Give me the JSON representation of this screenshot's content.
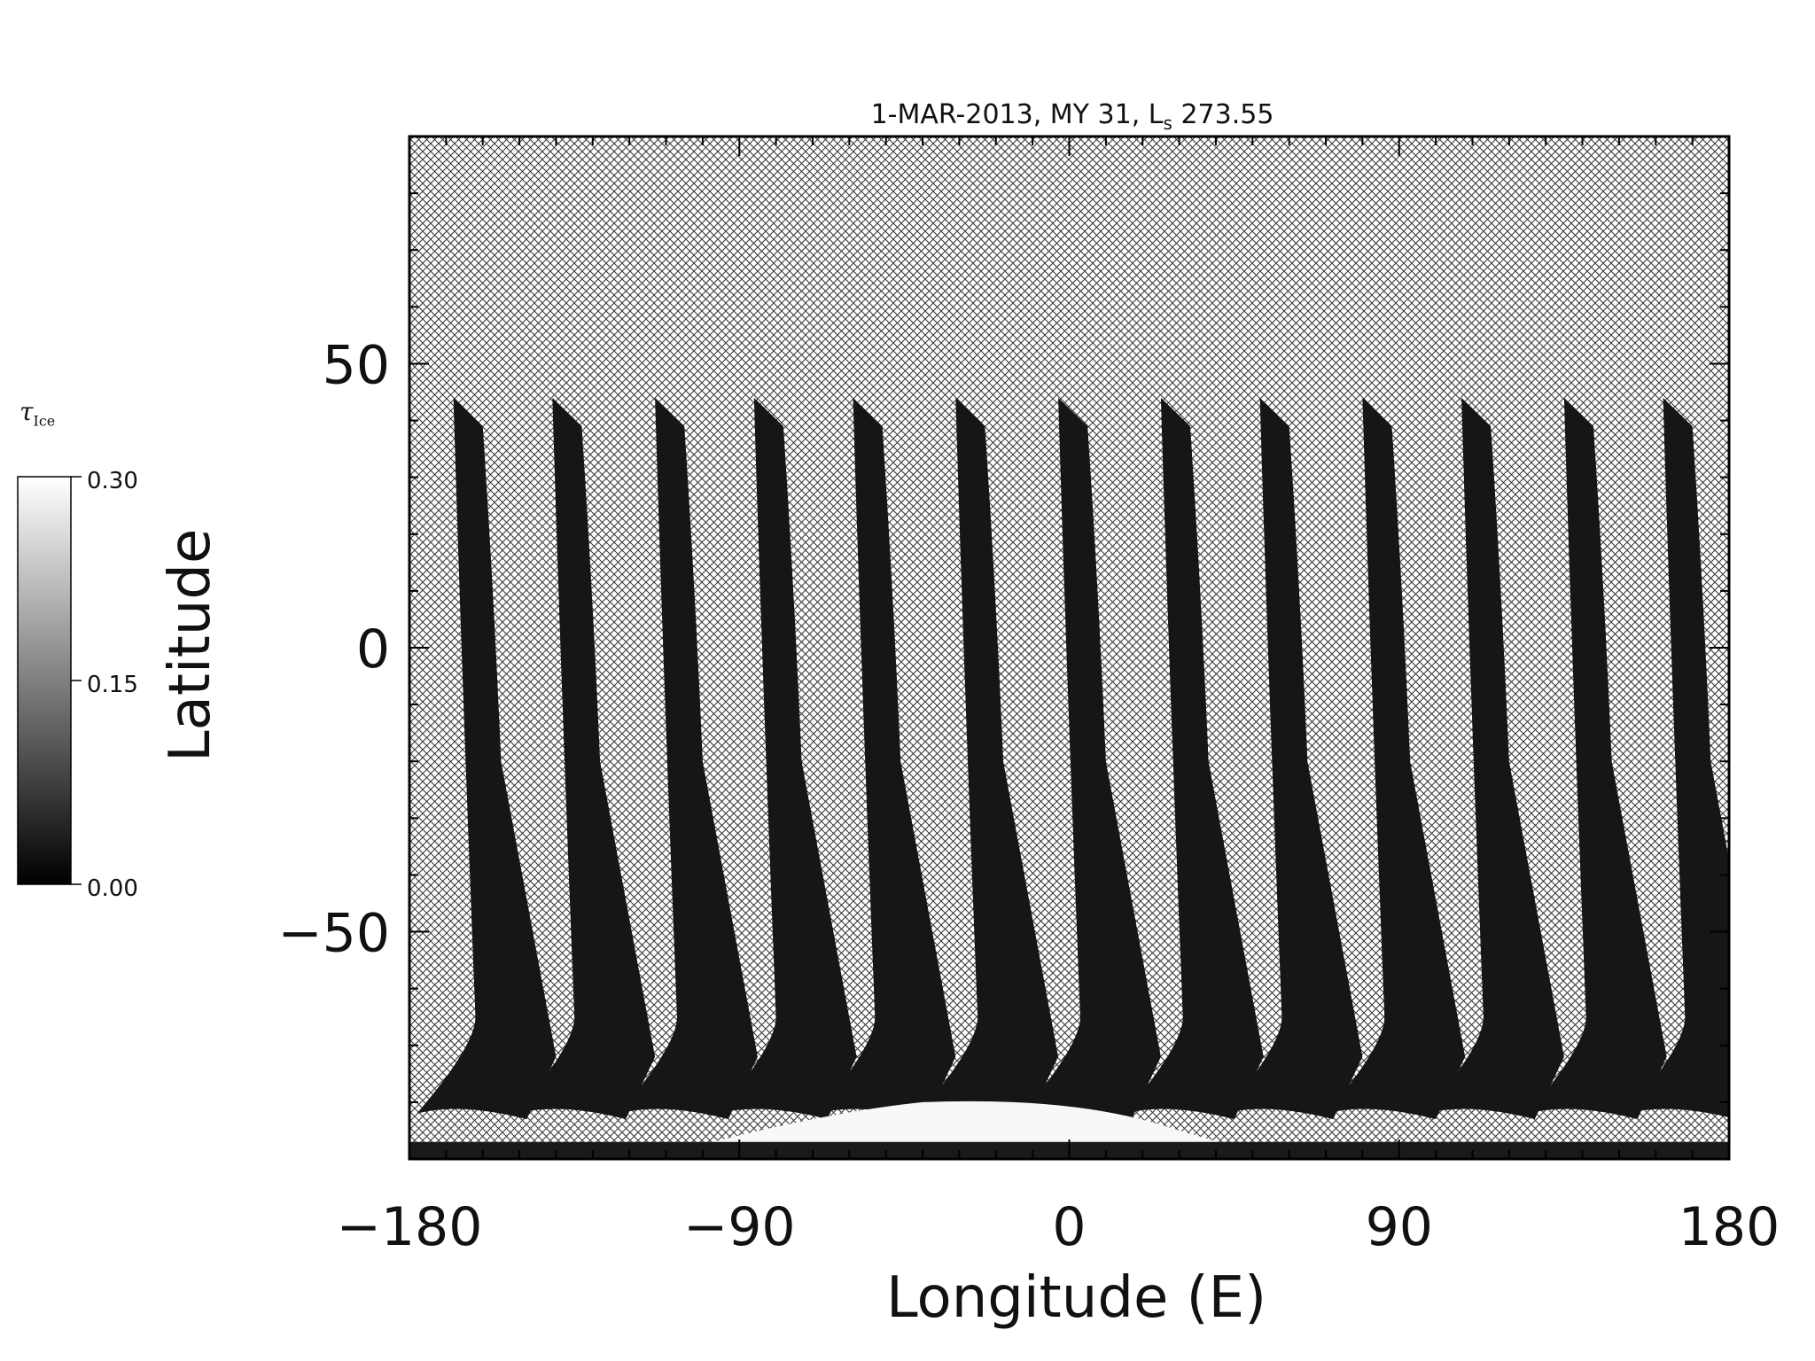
{
  "chart_data": {
    "type": "heatmap",
    "title": "1-MAR-2013, MY 31,  L",
    "title_sub": "s",
    "title_suffix": " 273.55",
    "xlabel": "Longitude (E)",
    "ylabel": "Latitude",
    "xlim": [
      -180,
      180
    ],
    "ylim": [
      -90,
      90
    ],
    "x_ticks": [
      -180,
      -90,
      0,
      90,
      180
    ],
    "x_tick_labels": [
      "−180",
      "−90",
      "0",
      "90",
      "180"
    ],
    "y_ticks": [
      -50,
      0,
      50
    ],
    "y_tick_labels": [
      "−50",
      "0",
      "50"
    ],
    "colorbar": {
      "label": "τ",
      "label_sub": "Ice",
      "range": [
        0.0,
        0.3
      ],
      "ticks": [
        "0.30",
        "0.15",
        "0.00"
      ],
      "colormap": "grayscale"
    },
    "no_data_pattern": "cross-hatch",
    "swath_top_latitude": 44,
    "swath_bottom_latitude": -83,
    "swath_start_longitudes": [
      -168,
      -141,
      -113,
      -86,
      -59,
      -31,
      -3,
      25,
      52,
      80,
      107,
      135,
      162
    ],
    "south_polar_cap_latitude": -80
  }
}
